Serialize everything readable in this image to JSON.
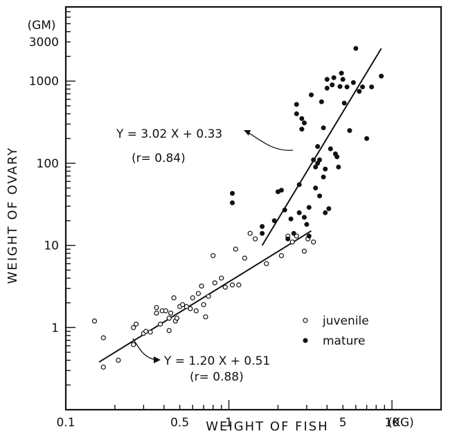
{
  "chart_data": {
    "type": "scatter",
    "title": "",
    "xlabel": "WEIGHT OF FISH",
    "ylabel": "WEIGHT OF OVARY",
    "x_unit": "(KG)",
    "y_unit": "(GM)",
    "x_scale": "log",
    "y_scale": "log",
    "xlim": [
      0.1,
      20
    ],
    "ylim": [
      0.1,
      8000
    ],
    "grid": false,
    "legend_position": "bottom-right",
    "x_ticks": [
      {
        "value": 0.1,
        "label": "0.1"
      },
      {
        "value": 0.5,
        "label": "0.5"
      },
      {
        "value": 1,
        "label": "1"
      },
      {
        "value": 5,
        "label": "5"
      },
      {
        "value": 10,
        "label": "10"
      }
    ],
    "y_ticks": [
      {
        "value": 1,
        "label": "1"
      },
      {
        "value": 10,
        "label": "10"
      },
      {
        "value": 100,
        "label": "100"
      },
      {
        "value": 1000,
        "label": "1000"
      },
      {
        "value": 3000,
        "label": "3000"
      }
    ],
    "series": [
      {
        "name": "juvenile",
        "marker": "open-circle",
        "points": [
          [
            0.15,
            1.2
          ],
          [
            0.17,
            0.75
          ],
          [
            0.17,
            0.33
          ],
          [
            0.21,
            0.4
          ],
          [
            0.26,
            0.62
          ],
          [
            0.26,
            1.0
          ],
          [
            0.27,
            1.1
          ],
          [
            0.3,
            0.85
          ],
          [
            0.31,
            0.9
          ],
          [
            0.33,
            0.88
          ],
          [
            0.36,
            1.5
          ],
          [
            0.36,
            1.75
          ],
          [
            0.38,
            1.1
          ],
          [
            0.39,
            1.6
          ],
          [
            0.41,
            1.6
          ],
          [
            0.43,
            1.3
          ],
          [
            0.43,
            0.92
          ],
          [
            0.44,
            1.5
          ],
          [
            0.46,
            2.3
          ],
          [
            0.47,
            1.2
          ],
          [
            0.48,
            1.3
          ],
          [
            0.5,
            1.8
          ],
          [
            0.52,
            1.9
          ],
          [
            0.55,
            1.8
          ],
          [
            0.58,
            1.7
          ],
          [
            0.6,
            2.3
          ],
          [
            0.63,
            1.6
          ],
          [
            0.65,
            2.6
          ],
          [
            0.68,
            3.2
          ],
          [
            0.7,
            1.9
          ],
          [
            0.72,
            1.35
          ],
          [
            0.75,
            2.4
          ],
          [
            0.8,
            7.5
          ],
          [
            0.82,
            3.5
          ],
          [
            0.9,
            4.0
          ],
          [
            0.95,
            3.1
          ],
          [
            1.05,
            3.3
          ],
          [
            1.1,
            9.0
          ],
          [
            1.15,
            3.3
          ],
          [
            1.25,
            7.0
          ],
          [
            1.35,
            14.0
          ],
          [
            1.45,
            12.0
          ],
          [
            1.7,
            6.0
          ],
          [
            2.1,
            7.5
          ],
          [
            2.3,
            13.0
          ],
          [
            2.45,
            11.0
          ],
          [
            2.6,
            13.0
          ],
          [
            2.9,
            8.5
          ],
          [
            3.05,
            12.0
          ],
          [
            3.3,
            11.0
          ]
        ]
      },
      {
        "name": "mature",
        "marker": "filled-circle",
        "points": [
          [
            1.05,
            43
          ],
          [
            1.05,
            33
          ],
          [
            1.6,
            17
          ],
          [
            1.6,
            14
          ],
          [
            1.9,
            20
          ],
          [
            2.0,
            45
          ],
          [
            2.1,
            47
          ],
          [
            2.2,
            27
          ],
          [
            2.3,
            12
          ],
          [
            2.4,
            21
          ],
          [
            2.5,
            14
          ],
          [
            2.6,
            400
          ],
          [
            2.6,
            520
          ],
          [
            2.7,
            55
          ],
          [
            2.7,
            25
          ],
          [
            2.8,
            350
          ],
          [
            2.8,
            260
          ],
          [
            2.9,
            310
          ],
          [
            2.9,
            22
          ],
          [
            3.0,
            18
          ],
          [
            3.1,
            29
          ],
          [
            3.1,
            13
          ],
          [
            3.2,
            680
          ],
          [
            3.3,
            110
          ],
          [
            3.4,
            90
          ],
          [
            3.4,
            50
          ],
          [
            3.5,
            100
          ],
          [
            3.5,
            160
          ],
          [
            3.6,
            110
          ],
          [
            3.6,
            40
          ],
          [
            3.7,
            560
          ],
          [
            3.8,
            270
          ],
          [
            3.8,
            68
          ],
          [
            3.9,
            25
          ],
          [
            3.9,
            85
          ],
          [
            4.0,
            1050
          ],
          [
            4.0,
            820
          ],
          [
            4.1,
            28
          ],
          [
            4.2,
            150
          ],
          [
            4.3,
            900
          ],
          [
            4.4,
            1100
          ],
          [
            4.5,
            130
          ],
          [
            4.6,
            120
          ],
          [
            4.7,
            90
          ],
          [
            4.8,
            860
          ],
          [
            4.9,
            1250
          ],
          [
            5.0,
            1050
          ],
          [
            5.1,
            540
          ],
          [
            5.3,
            850
          ],
          [
            5.5,
            250
          ],
          [
            5.8,
            960
          ],
          [
            6.0,
            2500
          ],
          [
            6.3,
            750
          ],
          [
            6.6,
            850
          ],
          [
            7.0,
            200
          ],
          [
            7.5,
            850
          ],
          [
            8.6,
            1150
          ]
        ]
      }
    ],
    "regressions": [
      {
        "label": "Y = 3.02 X + 0.33",
        "r_label": "(r= 0.84)",
        "x_range": [
          1.6,
          8.6
        ],
        "y_range": [
          10,
          2500
        ]
      },
      {
        "label": "Y = 1.20 X + 0.51",
        "r_label": "(r= 0.88)",
        "x_range": [
          0.16,
          3.2
        ],
        "y_range": [
          0.38,
          15
        ]
      }
    ]
  }
}
